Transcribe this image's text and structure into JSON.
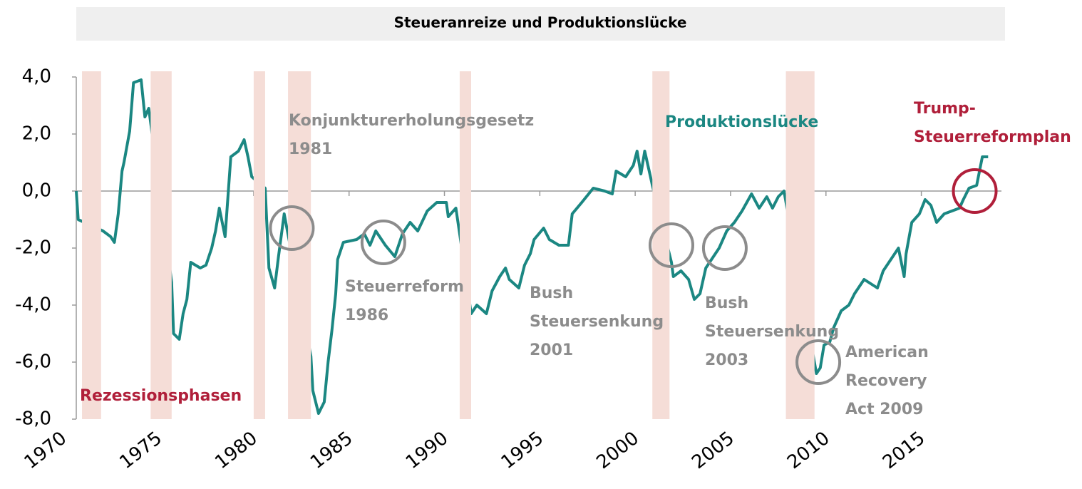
{
  "chart_data": {
    "type": "line",
    "title": "Steueranreize und Produktionslücke",
    "xlim": [
      1970.7,
      2019.2
    ],
    "xticks": [
      1970,
      1975,
      1980,
      1985,
      1990,
      1995,
      2000,
      2005,
      2010,
      2015
    ],
    "ylim": [
      -8,
      4
    ],
    "yticks": [
      {
        "value": 4,
        "label": "4,0"
      },
      {
        "value": 2,
        "label": "2,0"
      },
      {
        "value": 0,
        "label": "0,0"
      },
      {
        "value": -2,
        "label": "-2,0"
      },
      {
        "value": -4,
        "label": "-4,0"
      },
      {
        "value": -6,
        "label": "-6,0"
      },
      {
        "value": -8,
        "label": "-8,0"
      }
    ],
    "series": [
      {
        "name": "Produktionslücke",
        "color": "#1b8782",
        "x": [
          1970.7,
          1970.8,
          1972.1,
          1972.5,
          1972.7,
          1972.9,
          1973.1,
          1973.2,
          1973.5,
          1973.7,
          1974.1,
          1974.3,
          1974.5,
          1975.7,
          1975.8,
          1976.1,
          1976.3,
          1976.5,
          1976.7,
          1977.2,
          1977.5,
          1977.8,
          1978.0,
          1978.2,
          1978.5,
          1978.8,
          1979.2,
          1979.5,
          1979.7,
          1979.9,
          1980.6,
          1980.8,
          1981.1,
          1981.3,
          1981.6,
          1983.0,
          1983.1,
          1983.4,
          1983.7,
          1983.9,
          1984.1,
          1984.3,
          1984.4,
          1984.7,
          1985.4,
          1985.8,
          1986.1,
          1986.4,
          1986.9,
          1987.4,
          1987.8,
          1988.2,
          1988.6,
          1989.1,
          1989.6,
          1990.1,
          1990.2,
          1990.6,
          1990.8,
          1991.4,
          1991.7,
          1992.2,
          1992.5,
          1992.9,
          1993.2,
          1993.4,
          1993.9,
          1994.2,
          1994.5,
          1994.7,
          1995.2,
          1995.5,
          1996.0,
          1996.5,
          1996.7,
          1997.2,
          1997.8,
          1998.4,
          1998.8,
          1999.0,
          1999.5,
          1999.9,
          2000.1,
          2000.3,
          2000.5,
          2000.8,
          2000.9,
          2001.9,
          2002.0,
          2002.4,
          2002.8,
          2003.1,
          2003.4,
          2003.7,
          2004.1,
          2004.4,
          2004.8,
          2005.2,
          2005.6,
          2006.1,
          2006.5,
          2006.9,
          2007.2,
          2007.5,
          2007.8,
          2009.5,
          2009.7,
          2009.9,
          2010.2,
          2010.4,
          2010.8,
          2011.2,
          2011.5,
          2012.0,
          2012.7,
          2013.0,
          2013.5,
          2013.8,
          2014.1,
          2014.2,
          2014.5,
          2014.9,
          2015.2,
          2015.5,
          2015.8,
          2016.2,
          2017.0,
          2017.2,
          2017.5,
          2017.9,
          2018.2,
          2018.5
        ],
        "values": [
          0,
          -1.0,
          -1.4,
          -1.6,
          -1.8,
          -0.8,
          0.7,
          1.0,
          2.1,
          3.8,
          3.9,
          2.6,
          2.9,
          -3.2,
          -5.0,
          -5.2,
          -4.3,
          -3.8,
          -2.5,
          -2.7,
          -2.6,
          -2.0,
          -1.4,
          -0.6,
          -1.6,
          1.2,
          1.4,
          1.8,
          1.2,
          0.5,
          0.1,
          -2.7,
          -3.4,
          -2.3,
          -0.8,
          -5.8,
          -7.0,
          -7.8,
          -7.4,
          -6.0,
          -4.9,
          -3.6,
          -2.4,
          -1.8,
          -1.7,
          -1.5,
          -1.9,
          -1.4,
          -1.9,
          -2.3,
          -1.5,
          -1.1,
          -1.4,
          -0.7,
          -0.4,
          -0.4,
          -0.9,
          -0.6,
          -1.5,
          -4.3,
          -4.0,
          -4.3,
          -3.5,
          -3.0,
          -2.7,
          -3.1,
          -3.4,
          -2.6,
          -2.2,
          -1.7,
          -1.3,
          -1.7,
          -1.9,
          -1.9,
          -0.8,
          -0.4,
          0.1,
          0.0,
          -0.1,
          0.7,
          0.5,
          0.9,
          1.4,
          0.6,
          1.4,
          0.5,
          0.2,
          -2.5,
          -3.0,
          -2.8,
          -3.1,
          -3.8,
          -3.6,
          -2.7,
          -2.3,
          -2.0,
          -1.4,
          -1.1,
          -0.7,
          -0.1,
          -0.6,
          -0.2,
          -0.6,
          -0.2,
          0.0,
          -6.4,
          -6.2,
          -5.4,
          -5.3,
          -4.8,
          -4.2,
          -4.0,
          -3.6,
          -3.1,
          -3.4,
          -2.8,
          -2.3,
          -2.0,
          -3.0,
          -2.2,
          -1.1,
          -0.8,
          -0.3,
          -0.5,
          -1.1,
          -0.8,
          -0.6,
          -0.3,
          0.1,
          0.2,
          1.2,
          1.2
        ]
      }
    ],
    "recessions": {
      "name": "Rezessionsphasen",
      "color": "#f5ddd7",
      "ranges": [
        [
          1971.0,
          1972.0
        ],
        [
          1974.6,
          1975.7
        ],
        [
          1980.0,
          1980.6
        ],
        [
          1981.8,
          1983.0
        ],
        [
          1990.8,
          1991.4
        ],
        [
          2000.9,
          2001.8
        ],
        [
          2007.9,
          2009.4
        ]
      ]
    },
    "circles": [
      {
        "x": 1982.0,
        "y": -1.3,
        "color": "#8c8c8c"
      },
      {
        "x": 1986.8,
        "y": -1.8,
        "color": "#8c8c8c"
      },
      {
        "x": 2001.9,
        "y": -1.9,
        "color": "#8c8c8c"
      },
      {
        "x": 2004.7,
        "y": -2.0,
        "color": "#8c8c8c"
      },
      {
        "x": 2009.6,
        "y": -6.0,
        "color": "#8c8c8c"
      },
      {
        "x": 2017.8,
        "y": 0.0,
        "color": "#b01f3a"
      }
    ],
    "annotations": [
      {
        "lines": [
          "Konjunkturerholungsgesetz",
          "1981"
        ],
        "color": "#8c8c8c"
      },
      {
        "lines": [
          "Steuerreform",
          "1986"
        ],
        "color": "#8c8c8c"
      },
      {
        "lines": [
          "Bush",
          "Steuersenkung",
          "2001"
        ],
        "color": "#8c8c8c"
      },
      {
        "lines": [
          "Bush",
          "Steuersenkung",
          "2003"
        ],
        "color": "#8c8c8c"
      },
      {
        "lines": [
          "American",
          "Recovery",
          "Act 2009"
        ],
        "color": "#8c8c8c"
      },
      {
        "lines": [
          "Trump-",
          "Steuerreformplan"
        ],
        "color": "#b01f3a"
      }
    ]
  }
}
